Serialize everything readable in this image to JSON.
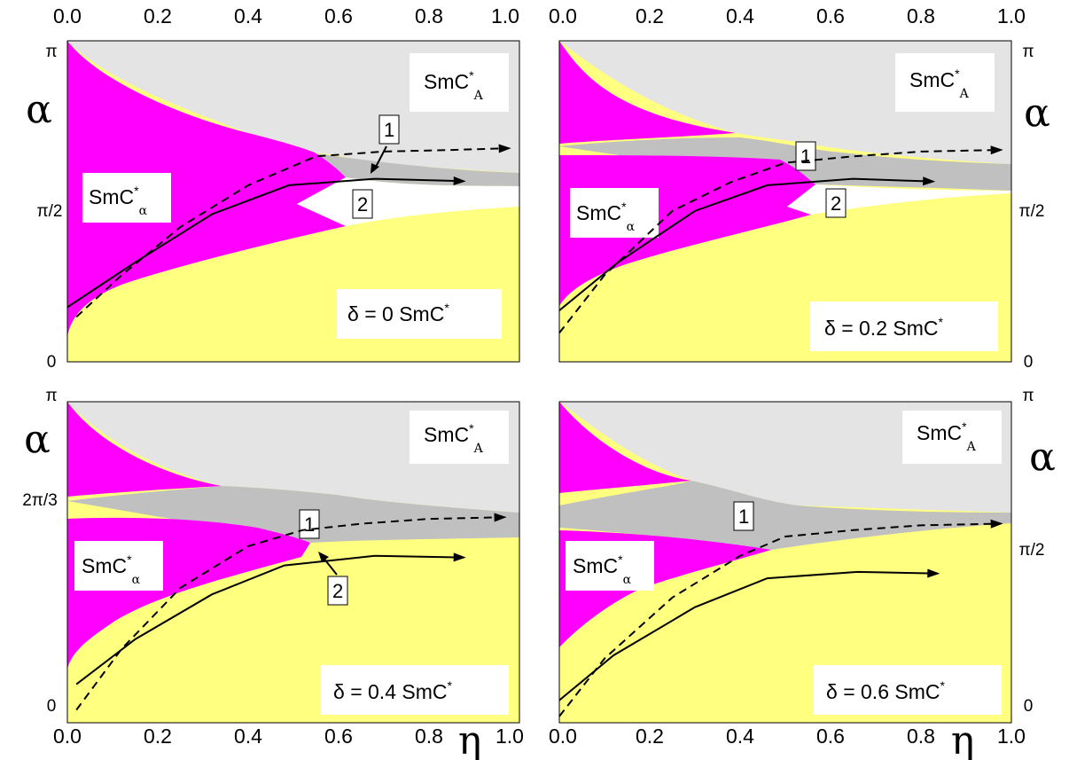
{
  "colors": {
    "smca": "#e4e4e4",
    "band": "#c0c0c0",
    "smcalpha": "#ff00ff",
    "smc": "#ffff80",
    "white": "#ffffff",
    "line": "#000000"
  },
  "labels": {
    "alpha_symbol": "α",
    "eta_symbol": "η",
    "smc_base": "SmC",
    "star": "*",
    "sub_A": "A",
    "sub_alpha": "α",
    "marker_1": "1",
    "marker_2": "2"
  },
  "x_ticks": [
    "0.0",
    "0.2",
    "0.4",
    "0.6",
    "0.8",
    "1.0"
  ],
  "chart_data": [
    {
      "type": "area",
      "delta_label": "δ = 0   SmC",
      "xlim": [
        0,
        1
      ],
      "ylim_label": [
        "0",
        "π"
      ],
      "y_tick_labels": [
        "0",
        "π/2",
        "π"
      ],
      "regions": [
        "SmC*A",
        "SmC*α",
        "SmC*"
      ],
      "series": [
        {
          "style": "dashed",
          "x": [
            0.02,
            0.12,
            0.25,
            0.4,
            0.55,
            0.7,
            0.85,
            0.97
          ],
          "y": [
            0.14,
            0.27,
            0.42,
            0.55,
            0.64,
            0.655,
            0.66,
            0.665
          ]
        },
        {
          "style": "solid",
          "x": [
            0.0,
            0.15,
            0.32,
            0.49,
            0.68,
            0.87
          ],
          "y": [
            0.17,
            0.31,
            0.46,
            0.55,
            0.57,
            0.563
          ]
        }
      ]
    },
    {
      "type": "area",
      "delta_label": "δ = 0.2   SmC",
      "xlim": [
        0,
        1
      ],
      "y_tick_labels": [
        "0",
        "π/2",
        "π"
      ],
      "regions": [
        "SmC*A",
        "SmC*α",
        "SmC*"
      ],
      "series": [
        {
          "style": "dashed",
          "x": [
            0.0,
            0.1,
            0.25,
            0.38,
            0.5,
            0.65,
            0.8,
            0.97
          ],
          "y": [
            0.09,
            0.27,
            0.47,
            0.56,
            0.62,
            0.64,
            0.655,
            0.66
          ]
        },
        {
          "style": "solid",
          "x": [
            0.0,
            0.13,
            0.3,
            0.46,
            0.65,
            0.82
          ],
          "y": [
            0.16,
            0.31,
            0.47,
            0.55,
            0.57,
            0.562
          ]
        }
      ]
    },
    {
      "type": "area",
      "delta_label": "δ = 0.4   SmC",
      "xlim": [
        0,
        1
      ],
      "y_tick_labels": [
        "0",
        "2π/3",
        "π"
      ],
      "regions": [
        "SmC*A",
        "SmC*α",
        "SmC*"
      ],
      "series": [
        {
          "style": "dashed",
          "x": [
            0.02,
            0.12,
            0.25,
            0.4,
            0.52,
            0.65,
            0.8,
            0.96
          ],
          "y": [
            0.04,
            0.23,
            0.42,
            0.55,
            0.6,
            0.62,
            0.635,
            0.64
          ]
        },
        {
          "style": "solid",
          "x": [
            0.02,
            0.15,
            0.32,
            0.48,
            0.68,
            0.87
          ],
          "y": [
            0.12,
            0.26,
            0.4,
            0.49,
            0.52,
            0.515
          ]
        }
      ]
    },
    {
      "type": "area",
      "delta_label": "δ = 0.6   SmC",
      "xlim": [
        0,
        1
      ],
      "y_tick_labels": [
        "0",
        "π/2",
        "π"
      ],
      "regions": [
        "SmC*A",
        "SmC*α",
        "SmC*"
      ],
      "series": [
        {
          "style": "dashed",
          "x": [
            0.0,
            0.1,
            0.25,
            0.4,
            0.5,
            0.65,
            0.8,
            0.97
          ],
          "y": [
            0.02,
            0.2,
            0.39,
            0.52,
            0.58,
            0.6,
            0.615,
            0.62
          ]
        },
        {
          "style": "solid",
          "x": [
            0.0,
            0.12,
            0.3,
            0.46,
            0.66,
            0.83
          ],
          "y": [
            0.07,
            0.21,
            0.36,
            0.45,
            0.47,
            0.465
          ]
        }
      ]
    }
  ]
}
